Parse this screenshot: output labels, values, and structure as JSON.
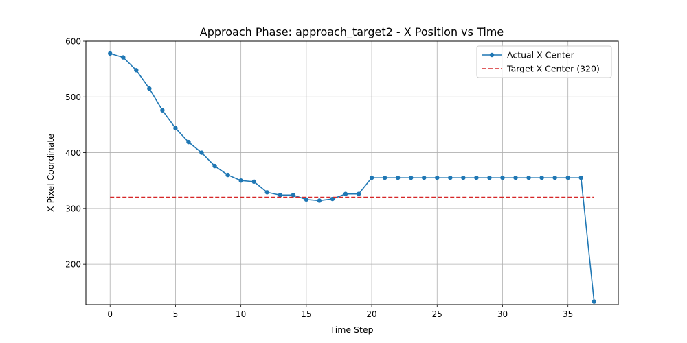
{
  "chart_data": {
    "type": "line",
    "title": "Approach Phase: approach_target2 - X Position vs Time",
    "xlabel": "Time Step",
    "ylabel": "X Pixel Coordinate",
    "xlim": [
      -1.85,
      38.85
    ],
    "ylim": [
      127.6,
      600
    ],
    "xticks": [
      0,
      5,
      10,
      15,
      20,
      25,
      30,
      35
    ],
    "yticks": [
      200,
      300,
      400,
      500,
      600
    ],
    "grid": true,
    "legend_position": "top-right",
    "series": [
      {
        "name": "Actual X Center",
        "style": "line-with-markers",
        "color": "#1f77b4",
        "x": [
          0,
          1,
          2,
          3,
          4,
          5,
          6,
          7,
          8,
          9,
          10,
          11,
          12,
          13,
          14,
          15,
          16,
          17,
          18,
          19,
          20,
          21,
          22,
          23,
          24,
          25,
          26,
          27,
          28,
          29,
          30,
          31,
          32,
          33,
          34,
          35,
          36,
          37
        ],
        "values": [
          578,
          571,
          548,
          515,
          476,
          444,
          419,
          400,
          376,
          360,
          350,
          348,
          329,
          324,
          324,
          316,
          314,
          317,
          326,
          326,
          355,
          355,
          355,
          355,
          355,
          355,
          355,
          355,
          355,
          355,
          355,
          355,
          355,
          355,
          355,
          355,
          355,
          133
        ]
      },
      {
        "name": "Target X Center (320)",
        "style": "dashed",
        "color": "#d62728",
        "x": [
          0,
          37
        ],
        "values": [
          320,
          320
        ]
      }
    ]
  }
}
